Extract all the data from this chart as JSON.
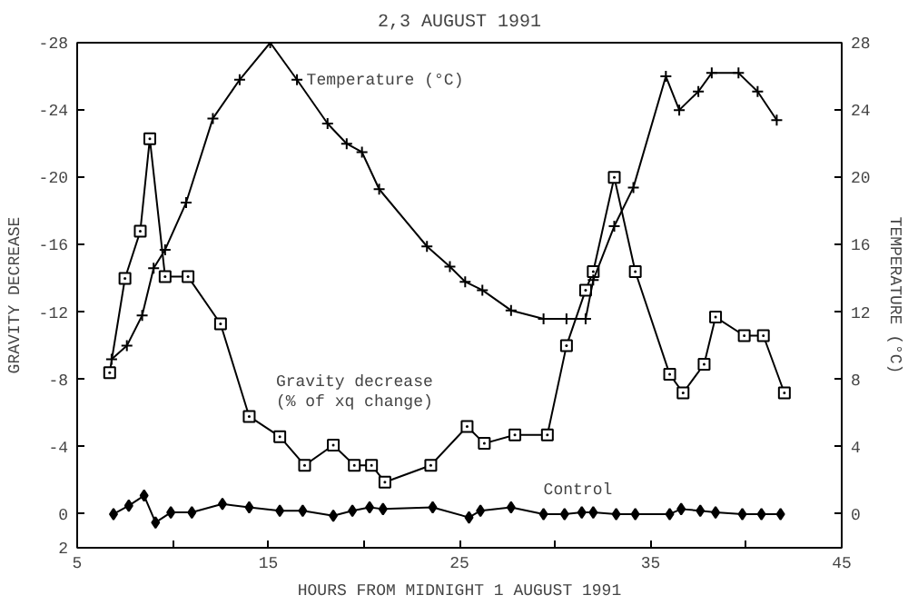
{
  "chart_data": {
    "type": "line",
    "title": "2,3 AUGUST 1991",
    "xlabel": "HOURS FROM MIDNIGHT 1 AUGUST 1991",
    "ylabel": "GRAVITY DECREASE",
    "y2label": "TEMPERATURE (°C)",
    "xlim": [
      5,
      45
    ],
    "xticks": [
      5,
      {
        "value": 10,
        "label": null
      },
      15,
      {
        "value": 20,
        "label": null
      },
      25,
      {
        "value": 30,
        "label": null
      },
      35,
      {
        "value": 40,
        "label": null
      },
      45
    ],
    "ylim": [
      2,
      -28
    ],
    "yticks": [
      2,
      0,
      -4,
      -8,
      -12,
      -16,
      -20,
      -24,
      -28
    ],
    "y2lim": [
      -2,
      28
    ],
    "y2ticks": [
      0,
      4,
      8,
      12,
      16,
      20,
      24,
      28
    ],
    "grid": false,
    "series": [
      {
        "name": "Gravity decrease\n(% of xq change)",
        "color": "#000000",
        "marker": "square",
        "x": [
          6.7,
          7.5,
          8.3,
          8.8,
          9.6,
          10.8,
          12.5,
          14,
          15.6,
          16.9,
          18.4,
          19.5,
          20.4,
          21.1,
          23.5,
          25.4,
          26.3,
          27.9,
          29.6,
          30.6,
          31.6,
          32,
          33.1,
          34.2,
          36,
          36.7,
          37.8,
          38.4,
          39.9,
          40.9,
          42
        ],
        "values": [
          -8.4,
          -14,
          -16.8,
          -22.3,
          -14.1,
          -14.1,
          -11.3,
          -5.8,
          -4.6,
          -2.9,
          -4.1,
          -2.9,
          -2.9,
          -1.9,
          -2.9,
          -5.2,
          -4.2,
          -4.7,
          -4.7,
          -10,
          -13.3,
          -14.4,
          -20,
          -14.4,
          -8.3,
          -7.2,
          -8.9,
          -11.7,
          -10.6,
          -10.6,
          -7.2
        ]
      },
      {
        "name": "Temperature (°C)",
        "color": "#000000",
        "marker": "cross",
        "axis": "y2",
        "x": [
          6.8,
          7.6,
          8.4,
          9,
          9.6,
          10.7,
          12.1,
          13.5,
          15.1,
          16.5,
          18.1,
          19.1,
          19.9,
          20.8,
          23.3,
          24.5,
          25.3,
          26.2,
          27.7,
          29.4,
          30.6,
          31.6,
          32,
          33.1,
          34.1,
          35.8,
          36.5,
          37.5,
          38.2,
          39.6,
          40.6,
          41.6
        ],
        "values": [
          9.2,
          10,
          11.8,
          14.6,
          15.7,
          18.5,
          23.5,
          25.8,
          28,
          25.8,
          23.2,
          22,
          21.5,
          19.3,
          15.9,
          14.7,
          13.8,
          13.3,
          12.1,
          11.6,
          11.6,
          11.6,
          13.9,
          17.1,
          19.4,
          26,
          24,
          25.1,
          26.2,
          26.2,
          25.1,
          23.4
        ]
      },
      {
        "name": "Control",
        "color": "#000000",
        "marker": "diamond",
        "x": [
          6.9,
          7.7,
          8.5,
          9.1,
          9.9,
          11,
          12.6,
          14,
          15.6,
          16.8,
          18.4,
          19.4,
          20.3,
          21,
          23.6,
          25.5,
          26.1,
          27.7,
          29.4,
          30.5,
          31.4,
          32,
          33.2,
          34.2,
          36,
          36.6,
          37.6,
          38.4,
          39.8,
          40.8,
          41.8
        ],
        "values": [
          0,
          -0.5,
          -1.1,
          0.5,
          -0.1,
          -0.1,
          -0.6,
          -0.4,
          -0.2,
          -0.2,
          0.1,
          -0.2,
          -0.4,
          -0.3,
          -0.4,
          0.2,
          -0.2,
          -0.4,
          0,
          0,
          -0.1,
          -0.1,
          0,
          0,
          0,
          -0.3,
          -0.2,
          -0.1,
          0,
          0,
          0
        ]
      }
    ]
  }
}
